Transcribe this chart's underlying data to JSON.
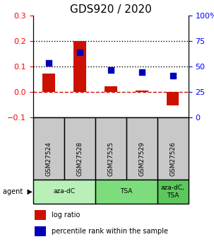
{
  "title": "GDS920 / 2020",
  "samples": [
    "GSM27524",
    "GSM27528",
    "GSM27525",
    "GSM27529",
    "GSM27526"
  ],
  "log_ratios": [
    0.073,
    0.202,
    0.022,
    0.006,
    -0.055
  ],
  "percentile_ranks": [
    0.115,
    0.157,
    0.087,
    0.077,
    0.065
  ],
  "agents": [
    {
      "label": "aza-dC",
      "span": [
        0,
        2
      ],
      "color": "#b8f0b8"
    },
    {
      "label": "TSA",
      "span": [
        2,
        4
      ],
      "color": "#7ddd7d"
    },
    {
      "label": "aza-dC,\nTSA",
      "span": [
        4,
        5
      ],
      "color": "#5cc85c"
    }
  ],
  "bar_color": "#cc1100",
  "dot_color": "#0000bb",
  "left_ylim": [
    -0.1,
    0.3
  ],
  "right_ylim": [
    0,
    100
  ],
  "left_yticks": [
    -0.1,
    0.0,
    0.1,
    0.2,
    0.3
  ],
  "right_yticks": [
    0,
    25,
    50,
    75,
    100
  ],
  "right_yticklabels": [
    "0",
    "25",
    "50",
    "75",
    "100%"
  ],
  "hlines": [
    0.1,
    0.2
  ],
  "zero_line_color": "#cc1100",
  "title_fontsize": 11,
  "bar_width": 0.4,
  "dot_size": 40,
  "sample_box_color": "#c8c8c8",
  "legend_items": [
    "log ratio",
    "percentile rank within the sample"
  ]
}
